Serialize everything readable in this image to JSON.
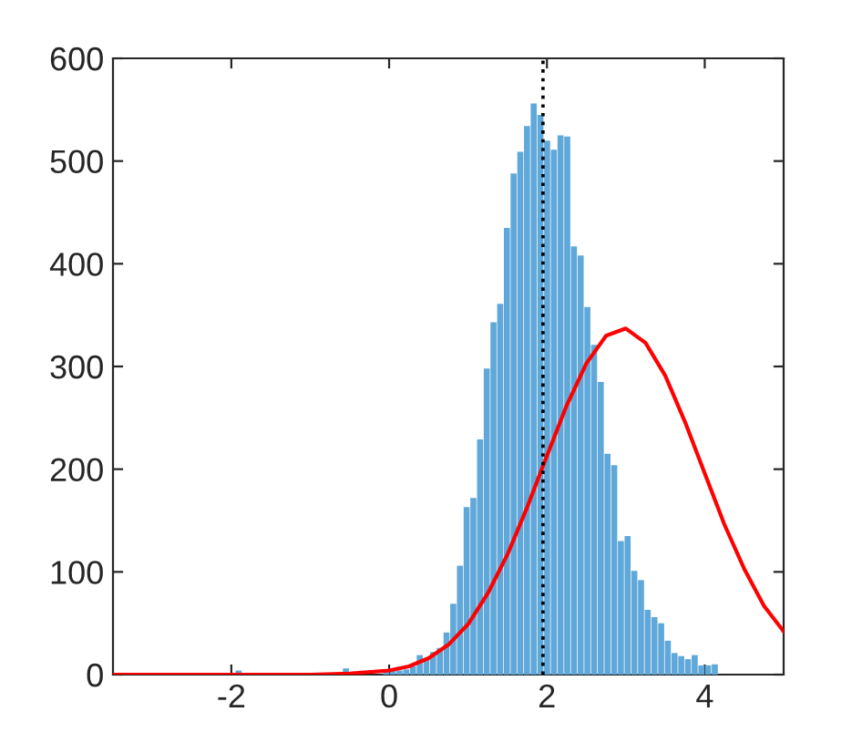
{
  "chart_data": {
    "type": "histogram",
    "xlim": [
      -3.5,
      5
    ],
    "ylim": [
      0,
      600
    ],
    "xticks": [
      -2,
      0,
      2,
      4
    ],
    "yticks": [
      0,
      100,
      200,
      300,
      400,
      500,
      600
    ],
    "grid": false,
    "series": [
      {
        "color": "#5fa8d9",
        "bins": [
          -2.035,
          -1.95,
          -1.865,
          -1.78,
          -1.695,
          -1.61,
          -1.525,
          -1.44,
          -1.355,
          -1.27,
          -1.185,
          -1.1,
          -1.015,
          -0.93,
          -0.845,
          -0.76,
          -0.675,
          -0.59,
          -0.505,
          -0.42,
          -0.335,
          -0.25,
          -0.165,
          -0.08,
          0.005,
          0.09,
          0.175,
          0.26,
          0.345,
          0.43,
          0.515,
          0.6,
          0.685,
          0.77,
          0.855,
          0.94,
          1.025,
          1.11,
          1.195,
          1.28,
          1.365,
          1.45,
          1.535,
          1.62,
          1.705,
          1.79,
          1.875,
          1.96,
          2.045,
          2.13,
          2.215,
          2.3,
          2.385,
          2.47,
          2.555,
          2.64,
          2.725,
          2.81,
          2.895,
          2.98,
          3.065,
          3.15,
          3.235,
          3.32,
          3.405,
          3.49,
          3.575,
          3.66,
          3.745,
          3.83,
          3.915,
          4,
          4.085,
          4.17
        ],
        "values": [
          0,
          4,
          0,
          0,
          0,
          0,
          0,
          0,
          0,
          0,
          0,
          0,
          0,
          0,
          0,
          0,
          0,
          6,
          0,
          0,
          0,
          0,
          0,
          3,
          4,
          4,
          5,
          8,
          19,
          15,
          22,
          26,
          41,
          69,
          106,
          163,
          172,
          229,
          298,
          343,
          361,
          435,
          488,
          509,
          534,
          556,
          545,
          520,
          511,
          525,
          524,
          417,
          408,
          358,
          321,
          285,
          215,
          204,
          130,
          135,
          101,
          92,
          63,
          56,
          50,
          33,
          21,
          18,
          15,
          19,
          9,
          9,
          10
        ]
      },
      {
        "type": "line",
        "color": "#ff0000",
        "x": [
          -3.5,
          -3,
          -2.5,
          -2,
          -1.5,
          -1,
          -0.5,
          0,
          0.25,
          0.5,
          0.75,
          1,
          1.25,
          1.5,
          1.75,
          2,
          2.25,
          2.5,
          2.75,
          3,
          3.25,
          3.5,
          3.75,
          4,
          4.25,
          4.5,
          4.75,
          5
        ],
        "values": [
          0,
          0,
          0,
          0,
          0,
          0,
          1,
          4,
          8,
          16,
          29,
          49,
          79,
          117,
          163,
          213,
          262,
          303,
          330,
          337,
          323,
          291,
          246,
          196,
          146,
          103,
          67,
          42
        ]
      }
    ],
    "ref_lines": [
      {
        "axis": "x",
        "value": 1.95,
        "color": "#000000",
        "line_style": "dotted"
      }
    ]
  }
}
